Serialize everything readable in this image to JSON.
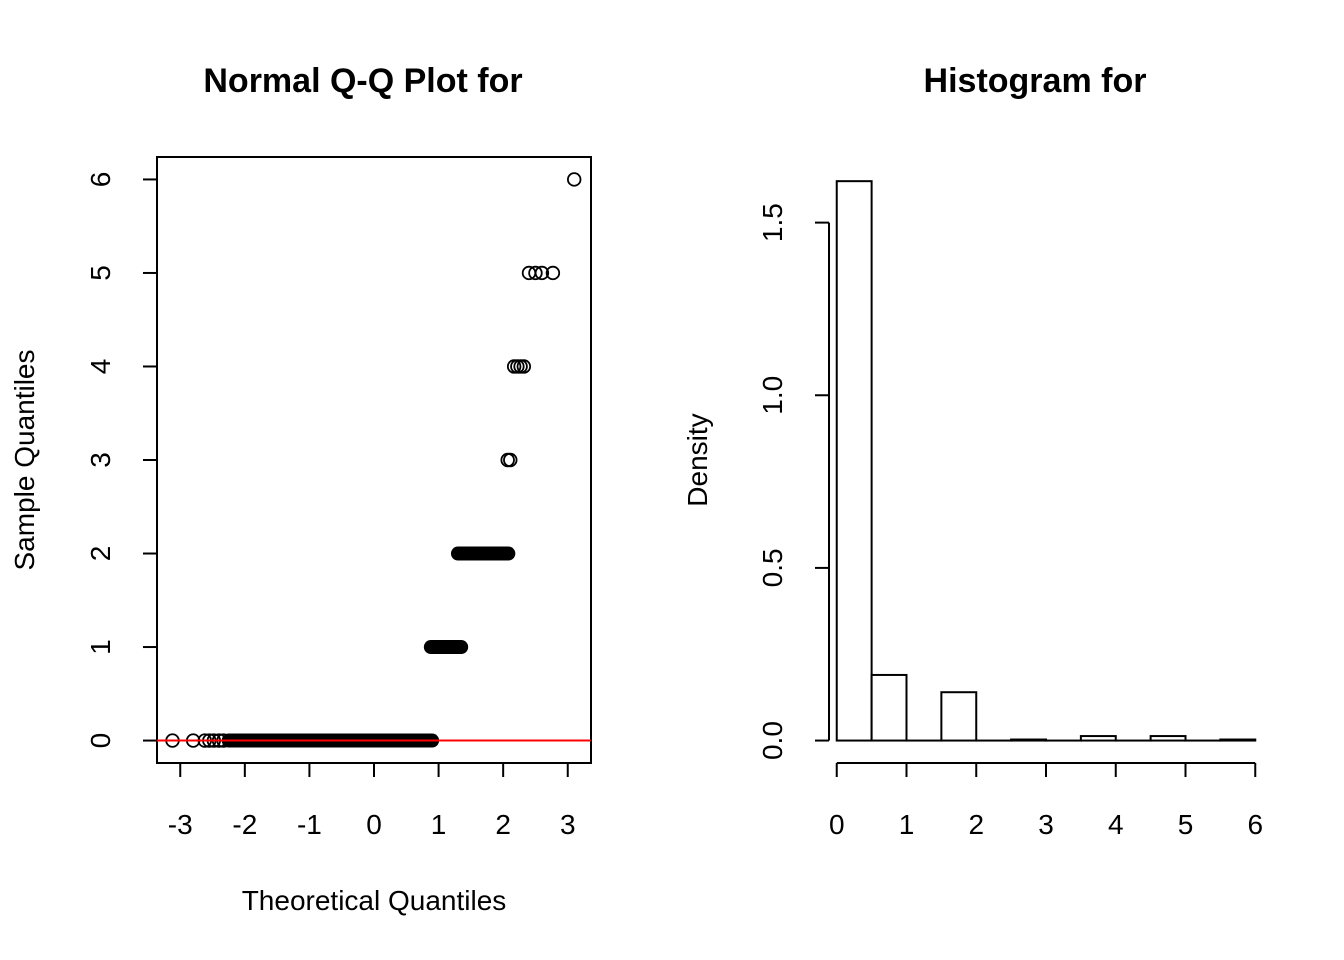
{
  "colors": {
    "background": "#ffffff",
    "ink": "#000000",
    "reference_line": "#ff0000"
  },
  "chart_data": [
    {
      "type": "scatter",
      "title": "Normal Q-Q Plot for",
      "xlabel": "Theoretical Quantiles",
      "ylabel": "Sample Quantiles",
      "xlim": [
        -3.36,
        3.36
      ],
      "ylim": [
        -0.24,
        6.24
      ],
      "x_ticks": [
        -3,
        -2,
        -1,
        0,
        1,
        2,
        3
      ],
      "y_ticks": [
        0,
        1,
        2,
        3,
        4,
        5,
        6
      ],
      "grid": false,
      "reference_line": {
        "slope": 0,
        "intercept": 0,
        "color": "#ff0000"
      },
      "bands": [
        {
          "y": 0,
          "x_from": -2.25,
          "x_to": 0.9
        },
        {
          "y": 1,
          "x_from": 0.88,
          "x_to": 1.35
        },
        {
          "y": 2,
          "x_from": 1.3,
          "x_to": 2.08
        }
      ],
      "points": [
        [
          -3.12,
          0
        ],
        [
          -2.8,
          0
        ],
        [
          -2.62,
          0
        ],
        [
          -2.55,
          0
        ],
        [
          -2.48,
          0
        ],
        [
          -2.4,
          0
        ],
        [
          -2.33,
          0
        ],
        [
          2.07,
          3
        ],
        [
          2.11,
          3
        ],
        [
          2.17,
          4
        ],
        [
          2.22,
          4
        ],
        [
          2.27,
          4
        ],
        [
          2.32,
          4
        ],
        [
          2.4,
          5
        ],
        [
          2.5,
          5
        ],
        [
          2.6,
          5
        ],
        [
          2.77,
          5
        ],
        [
          3.1,
          6
        ]
      ]
    },
    {
      "type": "bar",
      "title": "Histogram for",
      "xlabel": "",
      "ylabel": "Density",
      "xlim": [
        -0.24,
        6.24
      ],
      "ylim": [
        -0.065,
        1.69
      ],
      "x_ticks": [
        0,
        1,
        2,
        3,
        4,
        5,
        6
      ],
      "y_ticks": [
        0.0,
        0.5,
        1.0,
        1.5
      ],
      "y_tick_labels": [
        "0.0",
        "0.5",
        "1.0",
        "1.5"
      ],
      "grid": false,
      "bin_width": 0.5,
      "bins": [
        {
          "from": 0.0,
          "to": 0.5,
          "density": 1.62
        },
        {
          "from": 0.5,
          "to": 1.0,
          "density": 0.19
        },
        {
          "from": 1.0,
          "to": 1.5,
          "density": 0.0
        },
        {
          "from": 1.5,
          "to": 2.0,
          "density": 0.14
        },
        {
          "from": 2.0,
          "to": 2.5,
          "density": 0.0
        },
        {
          "from": 2.5,
          "to": 3.0,
          "density": 0.003
        },
        {
          "from": 3.0,
          "to": 3.5,
          "density": 0.0
        },
        {
          "from": 3.5,
          "to": 4.0,
          "density": 0.013
        },
        {
          "from": 4.0,
          "to": 4.5,
          "density": 0.0
        },
        {
          "from": 4.5,
          "to": 5.0,
          "density": 0.013
        },
        {
          "from": 5.0,
          "to": 5.5,
          "density": 0.0
        },
        {
          "from": 5.5,
          "to": 6.0,
          "density": 0.003
        }
      ]
    }
  ]
}
